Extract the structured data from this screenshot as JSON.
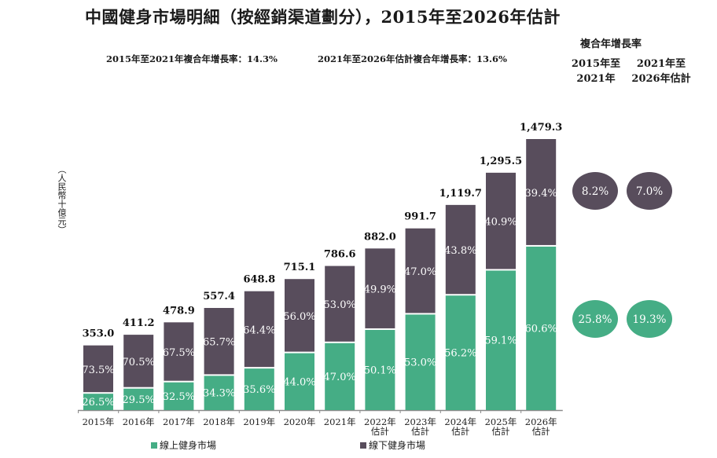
{
  "title": "中國健身市場明細（按經銷渠道劃分），2015年至2026年估計",
  "cagr_summary": {
    "left": "2015年至2021年複合年增長率：14.3%",
    "right": "2021年至2026年估計複合年增長率：13.6%"
  },
  "cagr_table": {
    "header": "複合年增長率",
    "col1": [
      "2015年至",
      "2021年"
    ],
    "col2": [
      "2021年至",
      "2026年估計"
    ],
    "offline": [
      "8.2%",
      "7.0%"
    ],
    "online": [
      "25.8%",
      "19.3%"
    ]
  },
  "colors": {
    "online": "#45ad85",
    "offline": "#584d5c"
  },
  "chart_data": {
    "type": "bar",
    "stacked": true,
    "title": "中國健身市場明細（按經銷渠道劃分），2015年至2026年估計",
    "ylabel": "（人民幣十億元）",
    "xlabel": "",
    "categories": [
      [
        "2015年"
      ],
      [
        "2016年"
      ],
      [
        "2017年"
      ],
      [
        "2018年"
      ],
      [
        "2019年"
      ],
      [
        "2020年"
      ],
      [
        "2021年"
      ],
      [
        "2022年",
        "估計"
      ],
      [
        "2023年",
        "估計"
      ],
      [
        "2024年",
        "估計"
      ],
      [
        "2025年",
        "估計"
      ],
      [
        "2026年",
        "估計"
      ]
    ],
    "totals": [
      353.0,
      411.2,
      478.9,
      557.4,
      648.8,
      715.1,
      786.6,
      882.0,
      991.7,
      1119.7,
      1295.5,
      1479.3
    ],
    "total_labels": [
      "353.0",
      "411.2",
      "478.9",
      "557.4",
      "648.8",
      "715.1",
      "786.6",
      "882.0",
      "991.7",
      "1,119.7",
      "1,295.5",
      "1,479.3"
    ],
    "series": [
      {
        "name": "線上健身市場",
        "key": "online",
        "share_pct": [
          26.5,
          29.5,
          32.5,
          34.3,
          35.6,
          44.0,
          47.0,
          50.1,
          53.0,
          56.2,
          59.1,
          60.6
        ]
      },
      {
        "name": "線下健身市場",
        "key": "offline",
        "share_pct": [
          73.5,
          70.5,
          67.5,
          65.7,
          64.4,
          56.0,
          53.0,
          49.9,
          47.0,
          43.8,
          40.9,
          39.4
        ]
      }
    ],
    "ylim": [
      0,
      1479.3
    ],
    "grid": false,
    "legend": "bottom"
  }
}
